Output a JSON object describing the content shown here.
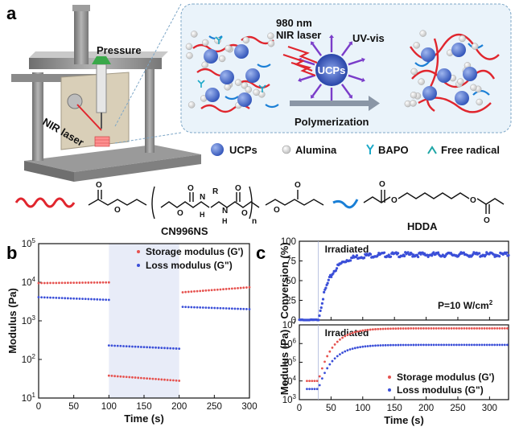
{
  "panel_labels": {
    "a": "a",
    "b": "b",
    "c": "c"
  },
  "schematic": {
    "pressure": "Pressure",
    "nir_laser": "NIR laser",
    "laser_line1": "980 nm",
    "laser_line2": "NIR laser",
    "uv_vis": "UV-vis",
    "ucps_center": "UCPs",
    "polymerization": "Polymerization",
    "legend": [
      "UCPs",
      "Alumina",
      "BAPO",
      "Free radical"
    ],
    "cn996ns": "CN996NS",
    "hdda": "HDDA",
    "atoms": {
      "o": "O",
      "n": "N",
      "h": "H",
      "r": "R",
      "n_sub": "n"
    },
    "colors": {
      "ucp": "#4a6fd0",
      "chain_red": "#e0262e",
      "chain_blue": "#1a7fd6",
      "radical": "#1fa6a6",
      "panel_bg": "#eaf3fa",
      "frame": "#8c8c8c"
    }
  },
  "chart_data": [
    {
      "type": "scatter",
      "panel": "b",
      "xlabel": "Time (s)",
      "ylabel": "Modulus (Pa)",
      "xlim": [
        0,
        300
      ],
      "ylim": [
        10,
        100000
      ],
      "yscale": "log",
      "x_ticks": [
        0,
        50,
        100,
        150,
        200,
        250,
        300
      ],
      "y_ticks": [
        "10^1",
        "10^2",
        "10^3",
        "10^4",
        "10^5"
      ],
      "shaded_region": [
        100,
        200
      ],
      "legend_position": "top-right",
      "series": [
        {
          "name": "Storage modulus (G')",
          "color": "#e6524f",
          "segments": [
            {
              "x": [
                0,
                100
              ],
              "y": [
                9500,
                9900
              ]
            },
            {
              "x": [
                100,
                200
              ],
              "y": [
                38,
                28
              ]
            },
            {
              "x": [
                205,
                300
              ],
              "y": [
                5500,
                7400
              ]
            }
          ]
        },
        {
          "name": "Loss modulus (G\")",
          "color": "#3b4fd8",
          "segments": [
            {
              "x": [
                0,
                100
              ],
              "y": [
                4100,
                3500
              ]
            },
            {
              "x": [
                100,
                200
              ],
              "y": [
                230,
                190
              ]
            },
            {
              "x": [
                205,
                300
              ],
              "y": [
                2300,
                2000
              ]
            }
          ]
        }
      ]
    },
    {
      "type": "scatter",
      "panel": "c-top",
      "xlabel": "",
      "ylabel": "Conversion (%)",
      "xlim": [
        0,
        330
      ],
      "ylim": [
        0,
        100
      ],
      "y_ticks": [
        0,
        25,
        50,
        75,
        100
      ],
      "annotation": "Irradiated",
      "irradiation_start": 30,
      "power_label": "P=10 W/cm",
      "power_sup": "2",
      "series": [
        {
          "name": "",
          "color": "#3b4fd8",
          "onset": 30,
          "plateau": 83
        }
      ]
    },
    {
      "type": "scatter",
      "panel": "c-bottom",
      "xlabel": "Time (s)",
      "ylabel": "Modulus (Pa)",
      "xlim": [
        0,
        330
      ],
      "ylim": [
        1000,
        10000000
      ],
      "yscale": "log",
      "x_ticks": [
        0,
        50,
        100,
        150,
        200,
        250,
        300
      ],
      "y_ticks": [
        "10^3",
        "10^4",
        "10^5",
        "10^6",
        "10^7"
      ],
      "annotation": "Irradiated",
      "irradiation_start": 30,
      "legend_position": "bottom-right",
      "series": [
        {
          "name": "Storage modulus (G')",
          "color": "#e6524f",
          "initial": 10000,
          "final": 6500000
        },
        {
          "name": "Loss modulus (G\")",
          "color": "#3b4fd8",
          "initial": 3700,
          "final": 850000
        }
      ]
    }
  ]
}
